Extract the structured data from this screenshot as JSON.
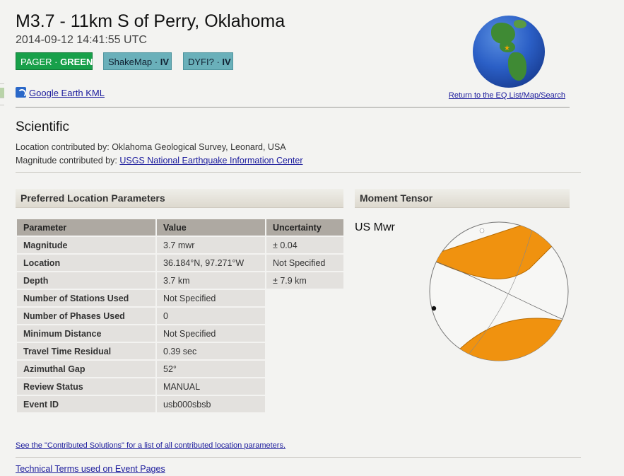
{
  "event": {
    "title": "M3.7 - 11km S of Perry, Oklahoma",
    "datetime": "2014-09-12 14:41:55 UTC"
  },
  "badges": [
    {
      "label": "PAGER · ",
      "value": "GREEN",
      "color": "#18a04a"
    },
    {
      "label": "ShakeMap · ",
      "value": "IV",
      "color": "#6ab0ba"
    },
    {
      "label": "DYFI? · ",
      "value": "IV",
      "color": "#6ab0ba"
    }
  ],
  "links": {
    "kml": "Google Earth KML",
    "eq_list": "Return to the EQ List/Map/Search",
    "contributed": "See the \"Contributed Solutions\" for a list of all contributed location parameters.",
    "technical": "Technical Terms used on Event Pages"
  },
  "scientific": {
    "heading": "Scientific",
    "location_prefix": "Location contributed by: ",
    "location_source": "Oklahoma Geological Survey, Leonard, USA",
    "magnitude_prefix": "Magnitude contributed by: ",
    "magnitude_source": "USGS National Earthquake Information Center"
  },
  "location_params": {
    "heading": "Preferred Location Parameters",
    "columns": [
      "Parameter",
      "Value",
      "Uncertainty"
    ],
    "rows": [
      {
        "name": "Magnitude",
        "value": "3.7 mwr",
        "uncertainty": "± 0.04"
      },
      {
        "name": "Location",
        "value": "36.184°N, 97.271°W",
        "uncertainty": "Not Specified"
      },
      {
        "name": "Depth",
        "value": "3.7 km",
        "uncertainty": "± 7.9 km"
      },
      {
        "name": "Number of Stations Used",
        "value": "Not Specified"
      },
      {
        "name": "Number of Phases Used",
        "value": "0"
      },
      {
        "name": "Minimum Distance",
        "value": "Not Specified"
      },
      {
        "name": "Travel Time Residual",
        "value": "0.39 sec"
      },
      {
        "name": "Azimuthal Gap",
        "value": "52°"
      },
      {
        "name": "Review Status",
        "value": "MANUAL"
      },
      {
        "name": "Event ID",
        "value": "usb000sbsb"
      }
    ]
  },
  "moment_tensor": {
    "heading": "Moment Tensor",
    "label": "US Mwr",
    "fill_color": "#f0920f",
    "icon": "beachball-diagram"
  },
  "globe": {
    "icon": "globe-epicenter-icon"
  }
}
